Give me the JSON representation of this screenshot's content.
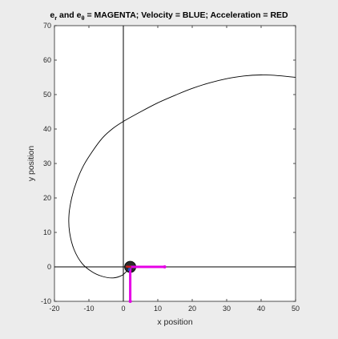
{
  "chart_data": {
    "type": "line",
    "title": {
      "e": "e",
      "r_sub": "r",
      "and": " and ",
      "theta_sub": "θ",
      "rest": " = MAGENTA;    Velocity = BLUE;    Acceleration = RED"
    },
    "xlabel": "x position",
    "ylabel": "y position",
    "xlim": [
      -20,
      50
    ],
    "ylim": [
      -10,
      70
    ],
    "xticks": [
      -20,
      -10,
      0,
      10,
      20,
      30,
      40,
      50
    ],
    "yticks": [
      -10,
      0,
      10,
      20,
      30,
      40,
      50,
      60,
      70
    ],
    "grid": false,
    "axis_lines": [
      {
        "name": "x-axis-line",
        "y": 0
      },
      {
        "name": "y-axis-line",
        "x": 0
      }
    ],
    "series": [
      {
        "name": "",
        "color": "#000000",
        "points": [
          [
            50,
            55.0
          ],
          [
            45,
            55.5
          ],
          [
            40,
            55.7
          ],
          [
            35,
            55.4
          ],
          [
            30,
            54.6
          ],
          [
            25,
            53.4
          ],
          [
            20,
            51.8
          ],
          [
            15,
            49.8
          ],
          [
            10,
            47.6
          ],
          [
            5,
            45.0
          ],
          [
            0,
            42.2
          ],
          [
            -3,
            40.2
          ],
          [
            -6,
            37.5
          ],
          [
            -9,
            33.5
          ],
          [
            -11.5,
            29.5
          ],
          [
            -13.5,
            25.0
          ],
          [
            -15,
            20.0
          ],
          [
            -15.8,
            15.0
          ],
          [
            -15.6,
            10.0
          ],
          [
            -14.3,
            5.0
          ],
          [
            -12,
            1.0
          ],
          [
            -9,
            -1.5
          ],
          [
            -6,
            -2.8
          ],
          [
            -3,
            -3.2
          ],
          [
            -0.5,
            -2.5
          ],
          [
            1,
            -1.2
          ],
          [
            2,
            0
          ]
        ]
      }
    ],
    "body": {
      "x": 2,
      "y": 0,
      "color": "#2b2b2b"
    },
    "vectors": [
      {
        "name": "e-r-vector",
        "color": "#e600e6",
        "from": [
          2,
          0
        ],
        "to": [
          12,
          0
        ]
      },
      {
        "name": "e-theta-vector",
        "color": "#e600e6",
        "from": [
          2,
          0
        ],
        "to": [
          2,
          -10
        ]
      },
      {
        "name": "velocity-vector",
        "color": "#1f4fd0",
        "from": [
          2,
          0
        ],
        "to": [
          1.6,
          -0.9
        ]
      },
      {
        "name": "acceleration-vector",
        "color": "#d01f1f",
        "from": [
          2,
          0
        ],
        "to": [
          1.0,
          0.1
        ]
      }
    ]
  }
}
